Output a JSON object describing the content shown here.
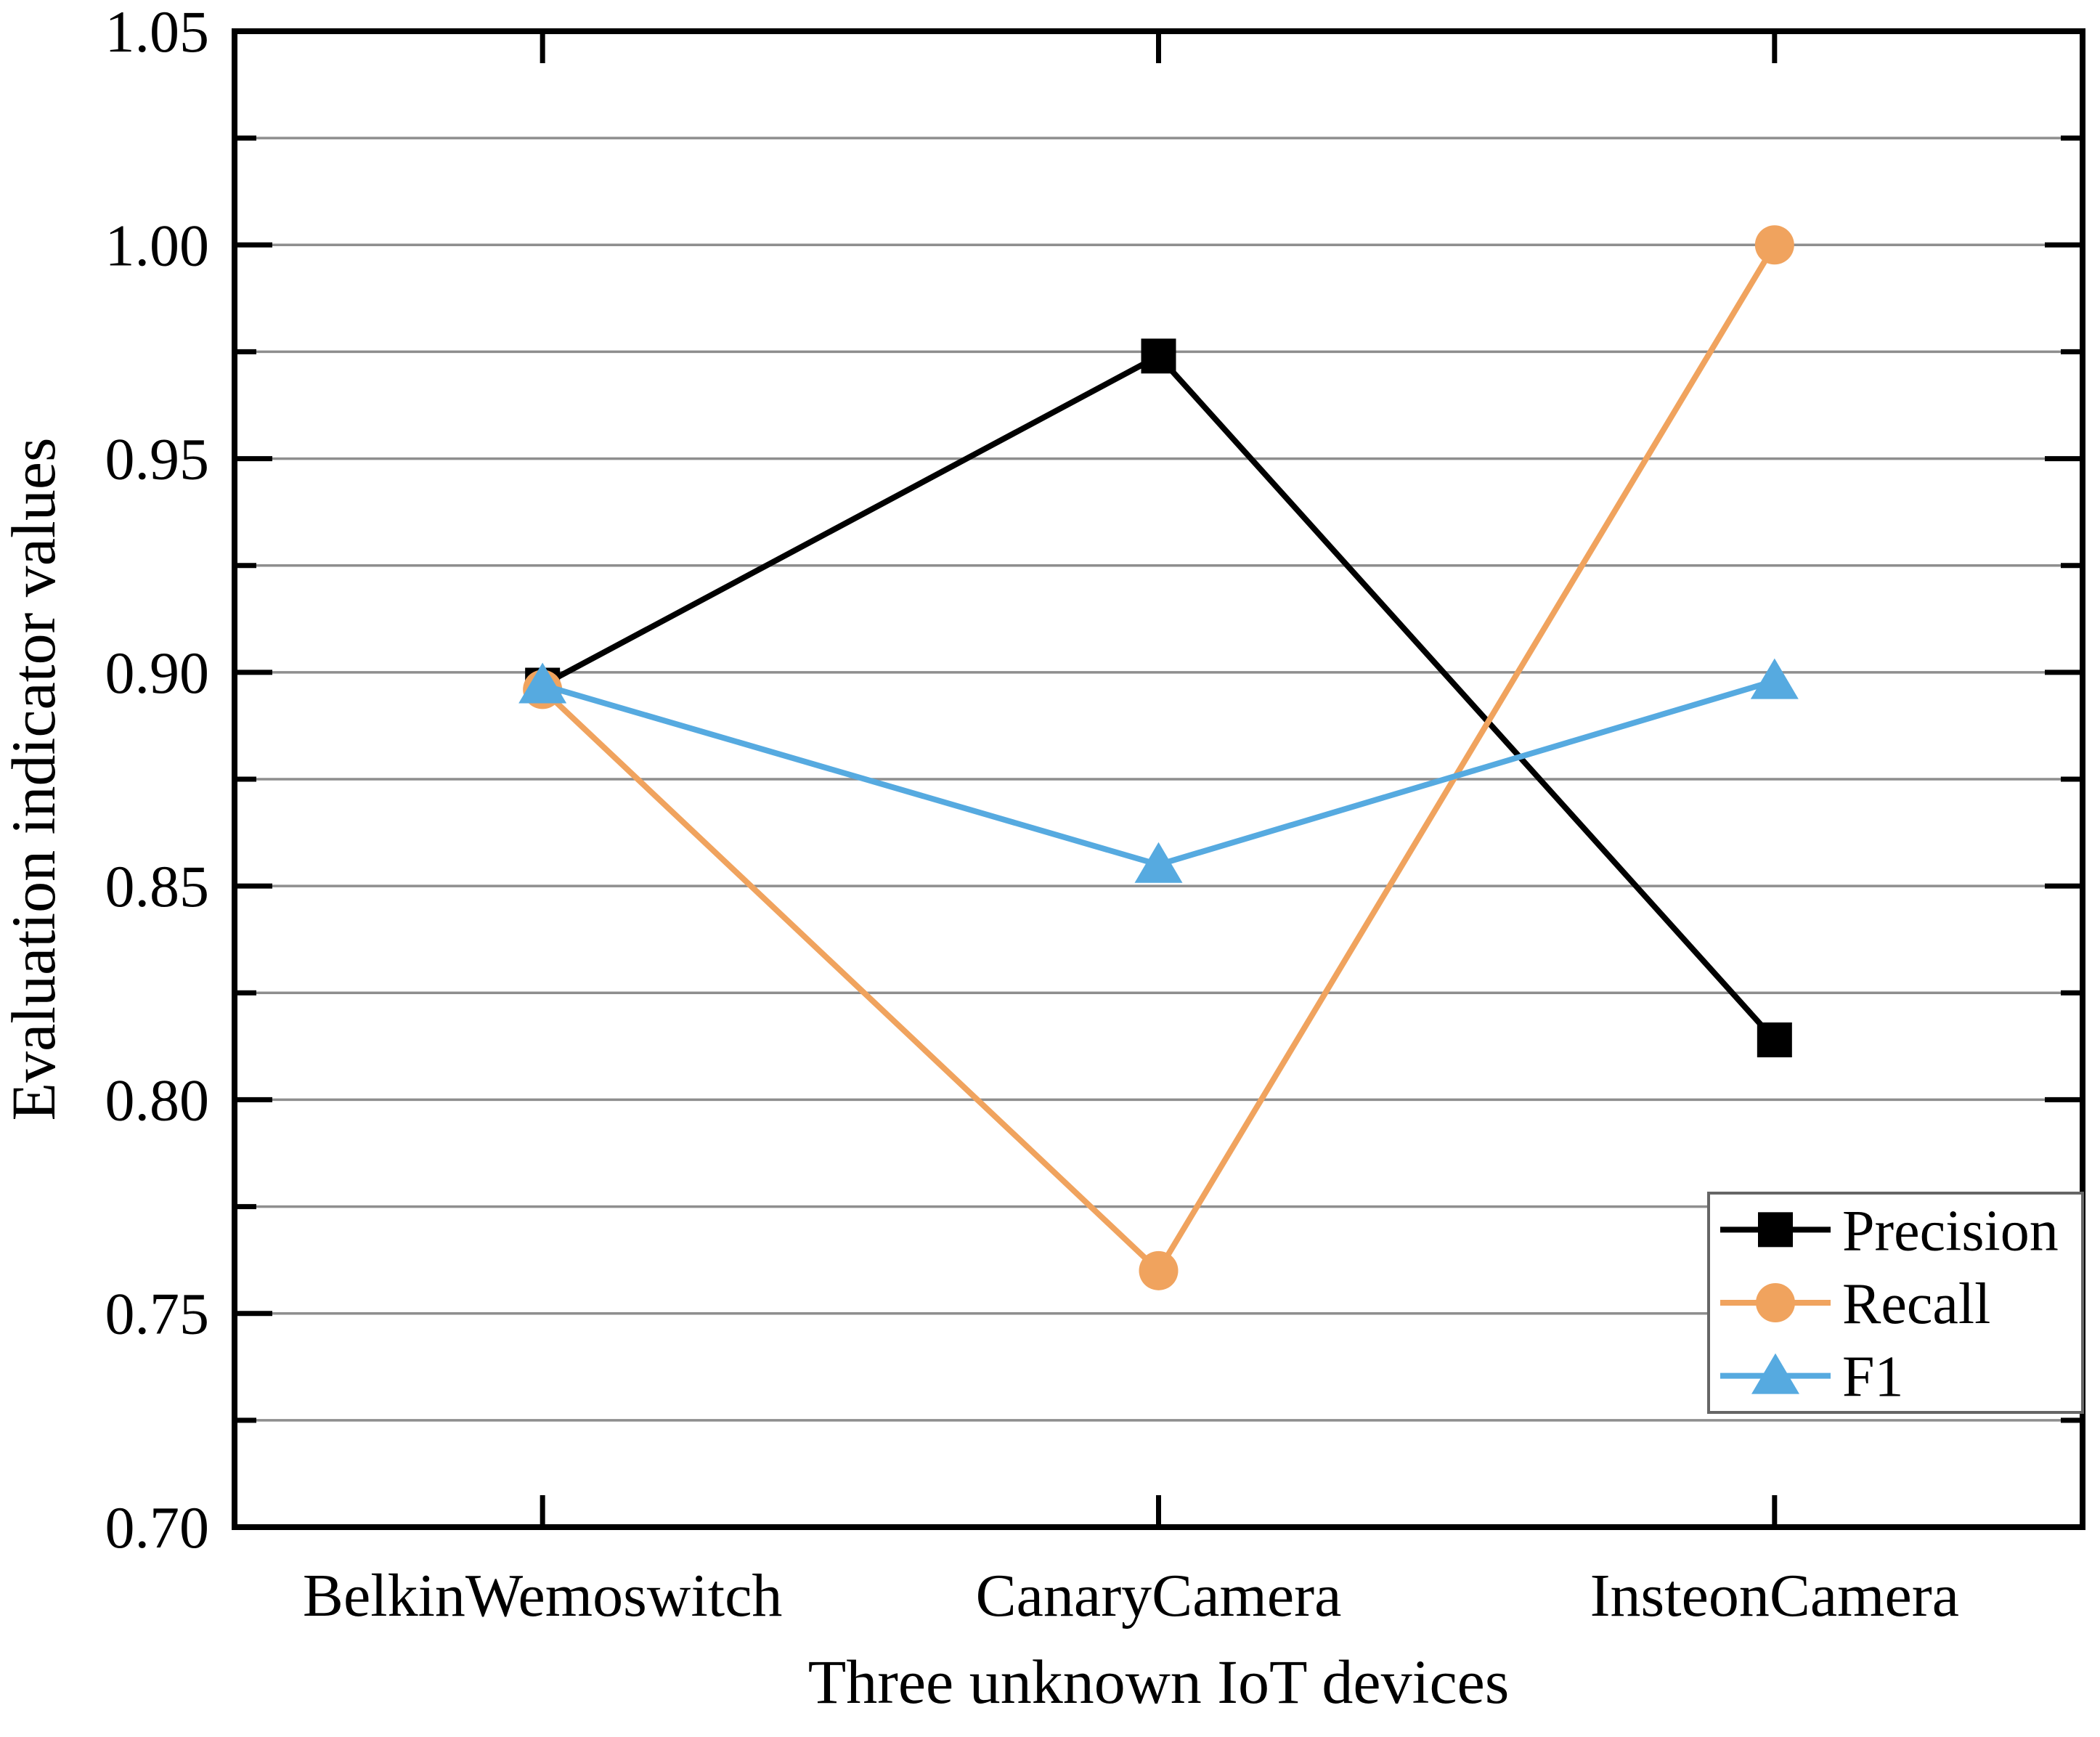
{
  "chart_data": {
    "type": "line",
    "title": "",
    "xlabel": "Three unknown IoT devices",
    "ylabel": "Evaluation indicator values",
    "categories": [
      "BelkinWemoswitch",
      "CanaryCamera",
      "InsteonCamera"
    ],
    "series": [
      {
        "name": "Precision",
        "marker": "square",
        "color": "#000000",
        "values": [
          0.897,
          0.974,
          0.814
        ]
      },
      {
        "name": "Recall",
        "marker": "circle",
        "color": "#F0A35E",
        "values": [
          0.896,
          0.76,
          1.0
        ]
      },
      {
        "name": "F1",
        "marker": "triangle",
        "color": "#56AAE0",
        "values": [
          0.897,
          0.855,
          0.898
        ]
      }
    ],
    "ylim": [
      0.7,
      1.05
    ],
    "ytick_labels": [
      "0.70",
      "0.75",
      "0.80",
      "0.85",
      "0.90",
      "0.95",
      "1.00",
      "1.05"
    ],
    "ytick_major_step": 0.05,
    "grid_step": 0.025,
    "grid": "horizontal",
    "grid_color": "#8E8E8E",
    "axis_color": "#000000",
    "legend_position": "lower-right",
    "legend_entries": [
      "Precision",
      "Recall",
      "F1"
    ]
  }
}
